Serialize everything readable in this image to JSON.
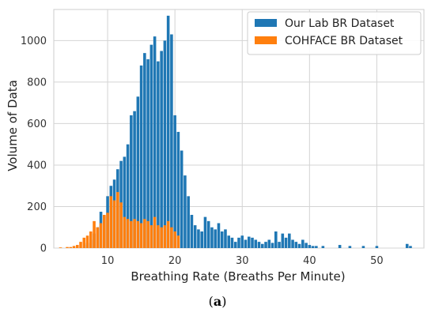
{
  "chart_data": {
    "type": "bar",
    "xlabel": "Breathing Rate (Breaths Per Minute)",
    "ylabel": "Volume of Data",
    "xlim": [
      2,
      57
    ],
    "ylim": [
      0,
      1150
    ],
    "xticks": [
      10,
      20,
      30,
      40,
      50
    ],
    "yticks": [
      0,
      200,
      400,
      600,
      800,
      1000
    ],
    "grid": true,
    "legend_position": "top-right",
    "bar_width": 0.42,
    "series": [
      {
        "name": "Our Lab BR Dataset",
        "color": "#1f77b4",
        "x": [
          6.5,
          7.0,
          7.5,
          8.0,
          8.5,
          9.0,
          9.5,
          10.0,
          10.5,
          11.0,
          11.5,
          12.0,
          12.5,
          13.0,
          13.5,
          14.0,
          14.5,
          15.0,
          15.5,
          16.0,
          16.5,
          17.0,
          17.5,
          18.0,
          18.5,
          19.0,
          19.5,
          20.0,
          20.5,
          21.0,
          21.5,
          22.0,
          22.5,
          23.0,
          23.5,
          24.0,
          24.5,
          25.0,
          25.5,
          26.0,
          26.5,
          27.0,
          27.5,
          28.0,
          28.5,
          29.0,
          29.5,
          30.0,
          30.5,
          31.0,
          31.5,
          32.0,
          32.5,
          33.0,
          33.5,
          34.0,
          34.5,
          35.0,
          35.5,
          36.0,
          36.5,
          37.0,
          37.5,
          38.0,
          38.5,
          39.0,
          39.5,
          40.0,
          40.5,
          41.0,
          42.0,
          44.5,
          46.0,
          48.0,
          50.0,
          54.5,
          55.0
        ],
        "values": [
          15,
          25,
          40,
          70,
          100,
          175,
          155,
          250,
          300,
          330,
          380,
          420,
          440,
          500,
          640,
          660,
          730,
          880,
          940,
          910,
          980,
          1020,
          900,
          950,
          1000,
          1120,
          1030,
          640,
          560,
          470,
          350,
          250,
          160,
          110,
          90,
          80,
          150,
          130,
          100,
          90,
          120,
          80,
          90,
          60,
          50,
          30,
          50,
          60,
          40,
          55,
          50,
          40,
          30,
          20,
          30,
          40,
          25,
          80,
          30,
          70,
          50,
          70,
          40,
          30,
          20,
          40,
          25,
          15,
          10,
          10,
          10,
          15,
          10,
          10,
          10,
          20,
          10
        ]
      },
      {
        "name": "COHFACE BR Dataset",
        "color": "#ff7f0e",
        "x": [
          3.0,
          4.0,
          4.5,
          5.0,
          5.5,
          6.0,
          6.5,
          7.0,
          7.5,
          8.0,
          8.5,
          9.0,
          9.5,
          10.0,
          10.5,
          11.0,
          11.5,
          12.0,
          12.5,
          13.0,
          13.5,
          14.0,
          14.5,
          15.0,
          15.5,
          16.0,
          16.5,
          17.0,
          17.5,
          18.0,
          18.5,
          19.0,
          19.5,
          20.0,
          20.5
        ],
        "values": [
          3,
          5,
          5,
          10,
          15,
          30,
          50,
          60,
          80,
          130,
          100,
          120,
          160,
          170,
          250,
          230,
          270,
          220,
          150,
          140,
          130,
          140,
          130,
          120,
          140,
          130,
          110,
          150,
          110,
          100,
          110,
          130,
          100,
          80,
          60
        ]
      }
    ]
  },
  "caption": {
    "open": "(",
    "letter": "a",
    "close": ")"
  }
}
